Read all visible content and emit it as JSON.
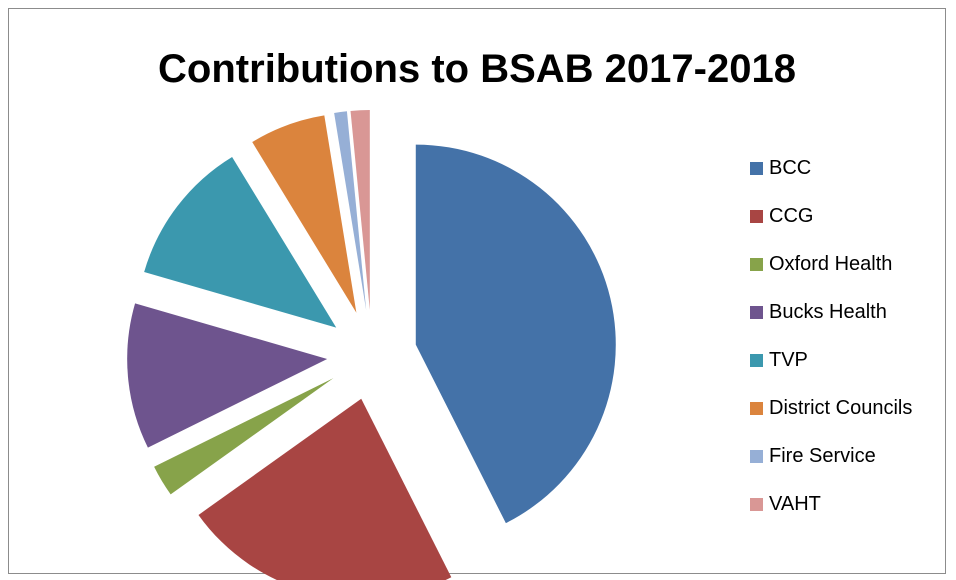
{
  "chart_data": {
    "type": "pie",
    "title": "Contributions to BSAB 2017-2018",
    "legend_position": "right",
    "exploded": true,
    "slices": [
      {
        "name": "BCC",
        "value": 41.5,
        "color": "#4472A8"
      },
      {
        "name": "CCG",
        "value": 22.0,
        "color": "#A84543"
      },
      {
        "name": "Oxford Health",
        "value": 2.5,
        "color": "#87A34A"
      },
      {
        "name": "Bucks Health",
        "value": 11.5,
        "color": "#6E548E"
      },
      {
        "name": "TVP",
        "value": 11.5,
        "color": "#3B98AE"
      },
      {
        "name": "District Councils",
        "value": 6.0,
        "color": "#DB843D"
      },
      {
        "name": "Fire Service",
        "value": 1.0,
        "color": "#96AFD6"
      },
      {
        "name": "VAHT",
        "value": 1.5,
        "color": "#D99795"
      }
    ]
  }
}
